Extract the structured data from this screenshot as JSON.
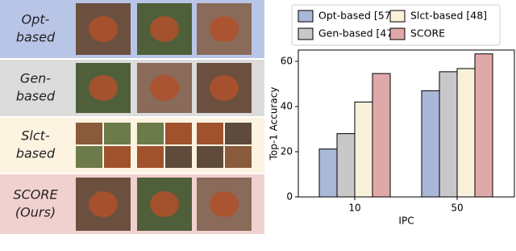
{
  "rows": [
    {
      "label": [
        "Opt-",
        "based"
      ],
      "color": "#b9c5e6"
    },
    {
      "label": [
        "Gen-",
        "based"
      ],
      "color": "#dcdcdc"
    },
    {
      "label": [
        "Slct-",
        "based"
      ],
      "color": "#fdf3e1"
    },
    {
      "label": [
        "SCORE",
        "(Ours)"
      ],
      "color": "#f1d1d0"
    }
  ],
  "chart_data": {
    "type": "bar",
    "categories": [
      "10",
      "50"
    ],
    "x_label": "IPC",
    "y_label": "Top-1 Accuracy",
    "ylim": [
      0,
      65
    ],
    "yticks": [
      0,
      20,
      40,
      60
    ],
    "series": [
      {
        "name": "Opt-based [57]",
        "color": "#a9b8d8",
        "values": [
          21.2,
          47
        ]
      },
      {
        "name": "Gen-based [47]",
        "color": "#c8c8c8",
        "values": [
          28,
          55.4
        ]
      },
      {
        "name": "Slct-based [48]",
        "color": "#f9f0d9",
        "values": [
          42,
          56.8
        ]
      },
      {
        "name": "SCORE",
        "color": "#e0a9a9",
        "values": [
          54.6,
          63.3
        ]
      }
    ]
  }
}
